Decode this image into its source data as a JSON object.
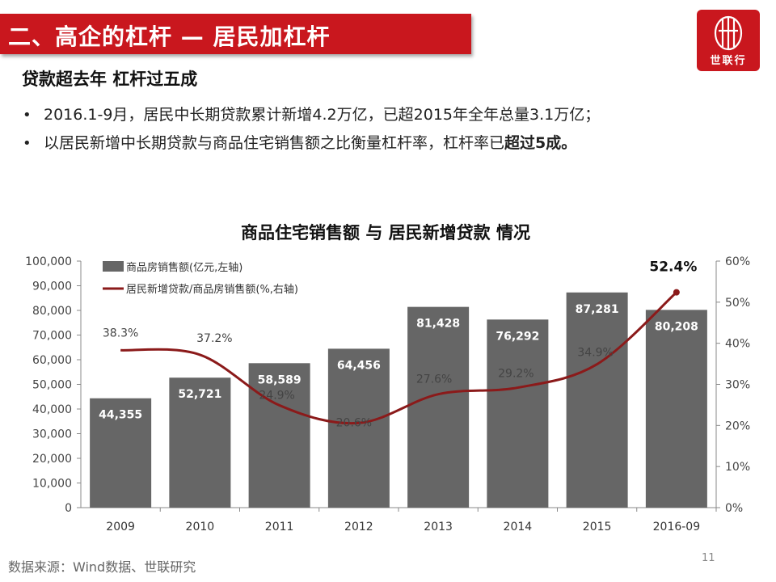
{
  "header": {
    "title": "二、高企的杠杆 — 居民加杠杆",
    "logo_text": "世联行"
  },
  "subheading": "贷款超去年 杠杆过五成",
  "bullets": [
    {
      "marker": "•",
      "text": "2016.1-9月，居民中长期贷款累计新增4.2万亿，已超2015年全年总量3.1万亿；",
      "bold": ""
    },
    {
      "marker": "•",
      "text": "以居民新增中长期贷款与商品住宅销售额之比衡量杠杆率，杠杆率已",
      "bold": "超过5成。"
    }
  ],
  "chart_data": {
    "type": "bar",
    "title": "商品住宅销售额 与 居民新增贷款 情况",
    "categories": [
      "2009",
      "2010",
      "2011",
      "2012",
      "2013",
      "2014",
      "2015",
      "2016-09"
    ],
    "series": [
      {
        "name": "商品房销售额(亿元,左轴)",
        "type": "bar",
        "axis": "left",
        "values": [
          44355,
          52721,
          58589,
          64456,
          81428,
          76292,
          87281,
          80208
        ],
        "labels": [
          "44,355",
          "52,721",
          "58,589",
          "64,456",
          "81,428",
          "76,292",
          "87,281",
          "80,208"
        ]
      },
      {
        "name": "居民新增贷款/商品房销售额(%,右轴)",
        "type": "line",
        "axis": "right",
        "values": [
          38.3,
          37.2,
          24.9,
          20.6,
          27.6,
          29.2,
          34.9,
          52.4
        ],
        "labels": [
          "38.3%",
          "37.2%",
          "24.9%",
          "20.6%",
          "27.6%",
          "29.2%",
          "34.9%",
          "52.4%"
        ]
      }
    ],
    "y_left": {
      "min": 0,
      "max": 100000,
      "step": 10000,
      "ticks": [
        "0",
        "10,000",
        "20,000",
        "30,000",
        "40,000",
        "50,000",
        "60,000",
        "70,000",
        "80,000",
        "90,000",
        "100,000"
      ]
    },
    "y_right": {
      "min": 0,
      "max": 60,
      "step": 10,
      "ticks": [
        "0%",
        "10%",
        "20%",
        "30%",
        "40%",
        "50%",
        "60%"
      ]
    },
    "legend_position": "top-left",
    "grid": false,
    "colors": {
      "bar": "#666666",
      "line": "#8b1a1a",
      "axis": "#888888"
    }
  },
  "footer": {
    "source": "数据来源：Wind数据、世联研究",
    "page_number": "11"
  }
}
